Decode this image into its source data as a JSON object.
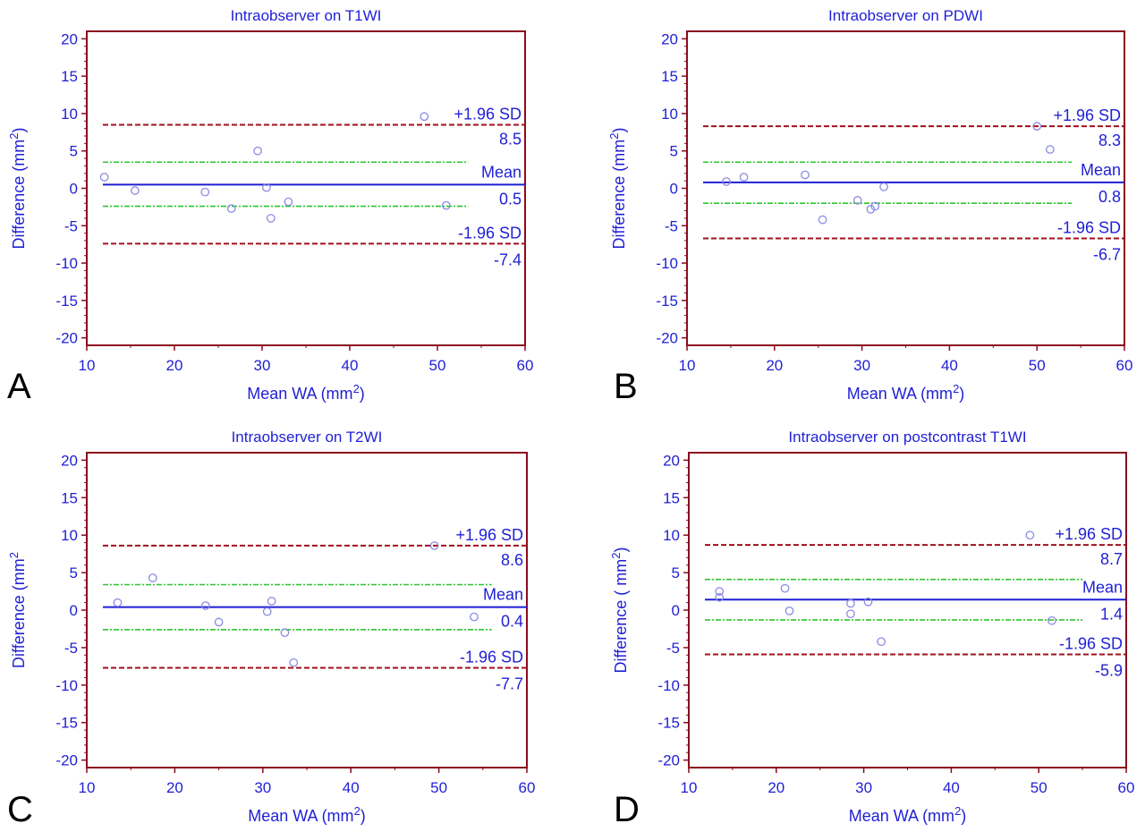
{
  "chart_data": [
    {
      "type": "scatter",
      "panel_label": "A",
      "title": "Intraobserver on T1WI",
      "xlabel": "Mean WA (mm",
      "xlabel_sup": "2",
      "xlabel_close": ")",
      "ylabel": "Difference (mm",
      "ylabel_sup": "2",
      "ylabel_close": ")",
      "xlim": [
        10,
        60
      ],
      "ylim": [
        -21,
        21
      ],
      "xticks": [
        10,
        20,
        30,
        40,
        50,
        60
      ],
      "yticks": [
        -20,
        -15,
        -10,
        -5,
        0,
        5,
        10,
        15,
        20
      ],
      "grid": false,
      "points": [
        [
          12,
          1.5
        ],
        [
          15.5,
          -0.3
        ],
        [
          23.5,
          -0.5
        ],
        [
          26.5,
          -2.7
        ],
        [
          29.5,
          5
        ],
        [
          30.5,
          0.1
        ],
        [
          31,
          -4
        ],
        [
          33,
          -1.8
        ],
        [
          48.5,
          9.6
        ],
        [
          51,
          -2.3
        ]
      ],
      "lines": {
        "upper": 8.5,
        "mean": 0.5,
        "lower": -7.4,
        "ci_mean_upper": 3.5,
        "ci_mean_lower": -2.4,
        "ci_end_x": 53.5
      },
      "labels": {
        "upper_label": "+1.96 SD",
        "upper_value": "8.5",
        "mean_label": "Mean",
        "mean_value": "0.5",
        "lower_label": "-1.96 SD",
        "lower_value": "-7.4"
      }
    },
    {
      "type": "scatter",
      "panel_label": "B",
      "title": "Intraobserver on PDWI",
      "xlabel": "Mean WA (mm",
      "xlabel_sup": "2",
      "xlabel_close": ")",
      "ylabel": "Difference (mm",
      "ylabel_sup": "2",
      "ylabel_close": ")",
      "xlim": [
        10,
        60
      ],
      "ylim": [
        -21,
        21
      ],
      "xticks": [
        10,
        20,
        30,
        40,
        50,
        60
      ],
      "yticks": [
        -20,
        -15,
        -10,
        -5,
        0,
        5,
        10,
        15,
        20
      ],
      "grid": false,
      "points": [
        [
          14.5,
          0.9
        ],
        [
          16.5,
          1.5
        ],
        [
          23.5,
          1.8
        ],
        [
          25.5,
          -4.2
        ],
        [
          29.5,
          -1.6
        ],
        [
          31,
          -2.8
        ],
        [
          31.5,
          -2.4
        ],
        [
          32.5,
          0.2
        ],
        [
          50,
          8.3
        ],
        [
          51.5,
          5.2
        ]
      ],
      "lines": {
        "upper": 8.3,
        "mean": 0.8,
        "lower": -6.7,
        "ci_mean_upper": 3.5,
        "ci_mean_lower": -2.0,
        "ci_end_x": 54
      },
      "labels": {
        "upper_label": "+1.96 SD",
        "upper_value": "8.3",
        "mean_label": "Mean",
        "mean_value": "0.8",
        "lower_label": "-1.96 SD",
        "lower_value": "-6.7"
      }
    },
    {
      "type": "scatter",
      "panel_label": "C",
      "title": "Intraobserver on T2WI",
      "xlabel": "Mean WA (mm",
      "xlabel_sup": "2",
      "xlabel_close": ")",
      "ylabel": "Difference (mm",
      "ylabel_sup": "2",
      "ylabel_close": "",
      "xlim": [
        10,
        60
      ],
      "ylim": [
        -21,
        21
      ],
      "xticks": [
        10,
        20,
        30,
        40,
        50,
        60
      ],
      "yticks": [
        -20,
        -15,
        -10,
        -5,
        0,
        5,
        10,
        15,
        20
      ],
      "grid": false,
      "points": [
        [
          13.5,
          1.0
        ],
        [
          17.5,
          4.3
        ],
        [
          23.5,
          0.6
        ],
        [
          25,
          -1.6
        ],
        [
          30.5,
          -0.2
        ],
        [
          31,
          1.2
        ],
        [
          32.5,
          -3.0
        ],
        [
          33.5,
          -7.0
        ],
        [
          49.5,
          8.6
        ],
        [
          54,
          -0.9
        ]
      ],
      "lines": {
        "upper": 8.6,
        "mean": 0.4,
        "lower": -7.7,
        "ci_mean_upper": 3.4,
        "ci_mean_lower": -2.6,
        "ci_end_x": 56
      },
      "labels": {
        "upper_label": "+1.96 SD",
        "upper_value": "8.6",
        "mean_label": "Mean",
        "mean_value": "0.4",
        "lower_label": "-1.96 SD",
        "lower_value": "-7.7"
      }
    },
    {
      "type": "scatter",
      "panel_label": "D",
      "title": "Intraobserver on postcontrast T1WI",
      "xlabel": "Mean WA (mm",
      "xlabel_sup": "2",
      "xlabel_close": ")",
      "ylabel": "Difference  ( mm",
      "ylabel_sup": "2",
      "ylabel_close": ")",
      "xlim": [
        10,
        60
      ],
      "ylim": [
        -21,
        21
      ],
      "xticks": [
        10,
        20,
        30,
        40,
        50,
        60
      ],
      "yticks": [
        -20,
        -15,
        -10,
        -5,
        0,
        5,
        10,
        15,
        20
      ],
      "grid": false,
      "points": [
        [
          13.5,
          2.5
        ],
        [
          13.5,
          1.7
        ],
        [
          21,
          2.9
        ],
        [
          21.5,
          -0.1
        ],
        [
          28.5,
          0.9
        ],
        [
          28.5,
          -0.5
        ],
        [
          30.5,
          1.1
        ],
        [
          32,
          -4.2
        ],
        [
          49,
          10.0
        ],
        [
          51.5,
          -1.4
        ]
      ],
      "lines": {
        "upper": 8.7,
        "mean": 1.4,
        "lower": -5.9,
        "ci_mean_upper": 4.1,
        "ci_mean_lower": -1.3,
        "ci_end_x": 55
      },
      "labels": {
        "upper_label": "+1.96 SD",
        "upper_value": "8.7",
        "mean_label": "Mean",
        "mean_value": "1.4",
        "lower_label": "-1.96 SD",
        "lower_value": "-5.9"
      }
    }
  ],
  "colors": {
    "axis_frame": "#8b0a1e",
    "text": "#1f1fd6",
    "mean_line": "#1f1fd6",
    "sd_line": "#a0101c",
    "ci_line": "#2cc62c",
    "point": "#8a8ae6",
    "panel_letter": "#000000"
  }
}
